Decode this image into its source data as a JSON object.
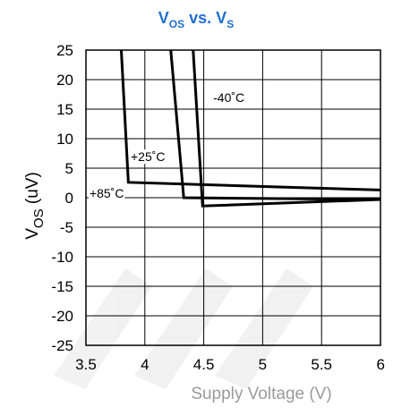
{
  "chart_data": {
    "type": "line",
    "title": "VOS vs. VS",
    "title_parts": {
      "v1": "V",
      "s1": "OS",
      "mid": " vs. ",
      "v2": "V",
      "s2": "S"
    },
    "title_color": "#1f6fd1",
    "xlabel": "Supply Voltage (V)",
    "ylabel_parts": {
      "main": "V",
      "sub": "OS",
      "unit": " (uV)"
    },
    "xlim": [
      3.5,
      6
    ],
    "ylim": [
      -25,
      25
    ],
    "x_ticks": [
      3.5,
      4,
      4.5,
      5,
      5.5,
      6
    ],
    "x_tick_labels": [
      "3.5",
      "4",
      "4.5",
      "5",
      "5.5",
      "6"
    ],
    "y_ticks": [
      25,
      20,
      15,
      10,
      5,
      0,
      -5,
      -10,
      -15,
      -20,
      -25
    ],
    "y_tick_labels": [
      "25",
      "20",
      "15",
      "10",
      "5",
      "0",
      "-5",
      "-10",
      "-15",
      "-20",
      "-25"
    ],
    "grid": true,
    "series": [
      {
        "name": "-40°C",
        "x": [
          3.8,
          3.86,
          6.0
        ],
        "y": [
          25,
          2.6,
          1.3
        ]
      },
      {
        "name": "+25°C",
        "x": [
          4.22,
          4.33,
          6.0
        ],
        "y": [
          25,
          0.0,
          -0.3
        ]
      },
      {
        "name": "+85°C",
        "x": [
          4.41,
          4.49,
          6.0
        ],
        "y": [
          25,
          -1.4,
          -0.3
        ]
      }
    ],
    "annotations": [
      {
        "text": "-40˚C",
        "x": 4.58,
        "y": 16.2
      },
      {
        "text": "+25˚C",
        "x": 3.88,
        "y": 6.2
      },
      {
        "text": "+85˚C",
        "x": 3.53,
        "y": 0.0
      }
    ]
  }
}
